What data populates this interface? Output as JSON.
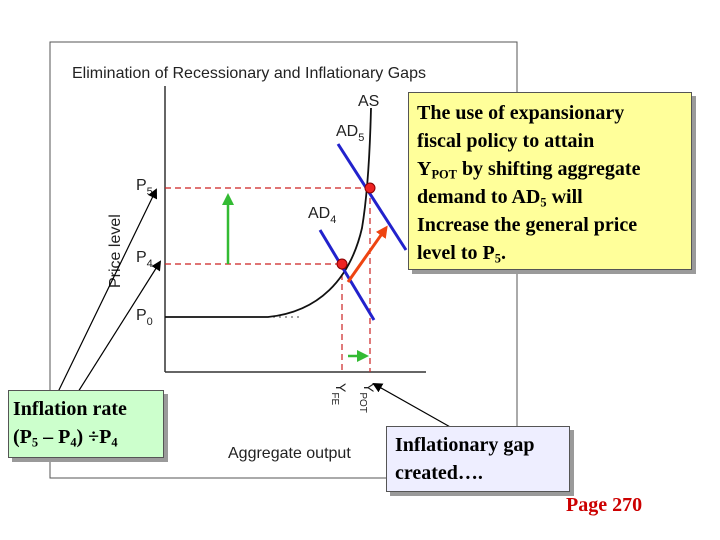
{
  "figure": {
    "title": "Elimination of Recessionary and Inflationary Gaps",
    "y_axis_label": "Price level",
    "x_axis_label": "Aggregate output",
    "price_ticks": {
      "p5": {
        "main": "P",
        "sub": "5"
      },
      "p4": {
        "main": "P",
        "sub": "4"
      },
      "p0": {
        "main": "P",
        "sub": "0"
      }
    },
    "curve_labels": {
      "as": "AS",
      "ad5": {
        "main": "AD",
        "sub": "5"
      },
      "ad4": {
        "main": "AD",
        "sub": "4"
      }
    },
    "output_labels": {
      "yfe": {
        "main": "Y",
        "sub": "FE"
      },
      "ypot": {
        "main": "Y",
        "sub": "POT"
      }
    }
  },
  "callout_policy": {
    "line1": "The use of expansionary",
    "line2": "fiscal policy to attain",
    "line3_main": "Y",
    "line3_sub": "POT",
    "line3_rest": " by shifting aggregate",
    "line4_pre": "demand to AD",
    "line4_sub": "5",
    "line4_post": " will",
    "line5": "Increase the general price",
    "line6_pre": "level to P",
    "line6_sub": "5",
    "line6_post": "."
  },
  "callout_inflation": {
    "line1": "Inflation rate",
    "line2_a": "(P",
    "line2_sub1": "5",
    "line2_b": " – P",
    "line2_sub2": "4",
    "line2_c": ") ÷P",
    "line2_sub3": "4"
  },
  "callout_gap": {
    "line1": "Inflationary gap",
    "line2": "created…."
  },
  "page_ref": "Page 270",
  "colors": {
    "curve_blue": "#2222cc",
    "dashed_red": "#cc2222",
    "arrow_green": "#33bb33",
    "arrow_red": "#ee4411",
    "point_red": "#ee2222",
    "page_ref": "#cc0000"
  }
}
